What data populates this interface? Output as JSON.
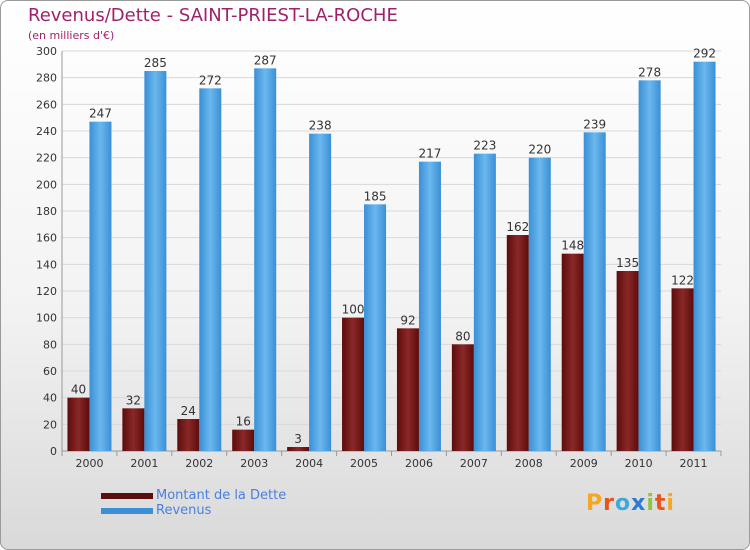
{
  "header": {
    "title": "Revenus/Dette - SAINT-PRIEST-LA-ROCHE",
    "subtitle": "(en milliers d'€)"
  },
  "chart_data": {
    "type": "bar",
    "categories": [
      "2000",
      "2001",
      "2002",
      "2003",
      "2004",
      "2005",
      "2006",
      "2007",
      "2008",
      "2009",
      "2010",
      "2011"
    ],
    "series": [
      {
        "name": "Montant de la Dette",
        "values": [
          40,
          32,
          24,
          16,
          3,
          100,
          92,
          80,
          162,
          148,
          135,
          122
        ],
        "color": "#7a1a1a"
      },
      {
        "name": "Revenus",
        "values": [
          247,
          285,
          272,
          287,
          238,
          185,
          217,
          223,
          220,
          239,
          278,
          292
        ],
        "color": "#4da3e3"
      }
    ],
    "ylim": [
      0,
      300
    ],
    "yticks": [
      0,
      20,
      40,
      60,
      80,
      100,
      120,
      140,
      160,
      180,
      200,
      220,
      240,
      260,
      280,
      300
    ],
    "grid": true,
    "legend_position": "bottom-left"
  },
  "logo": {
    "text": "Proxiti",
    "letters": [
      "P",
      "r",
      "o",
      "x",
      "i",
      "t",
      "i"
    ],
    "colors": [
      "#f5a623",
      "#e8541c",
      "#3ea9dd",
      "#2a7bd4",
      "#8cc63f",
      "#e8541c",
      "#f5a623"
    ]
  }
}
